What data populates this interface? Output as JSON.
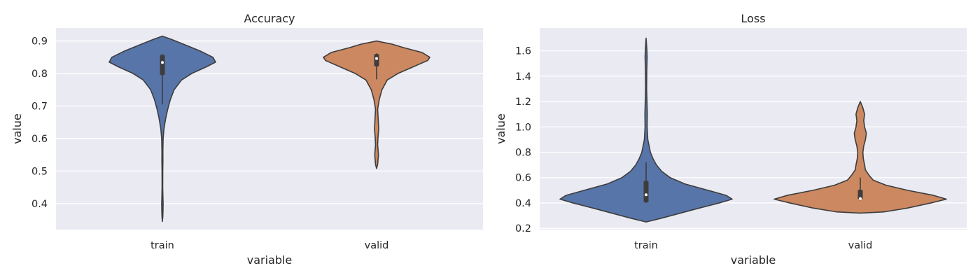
{
  "chart_data": [
    {
      "type": "violin",
      "title": "Accuracy",
      "xlabel": "variable",
      "ylabel": "value",
      "ylim": [
        0.32,
        0.94
      ],
      "yticks": [
        0.4,
        0.5,
        0.6,
        0.7,
        0.8,
        0.9
      ],
      "ytick_labels": [
        "0.4",
        "0.5",
        "0.6",
        "0.7",
        "0.8",
        "0.9"
      ],
      "grid": true,
      "categories": [
        "train",
        "valid"
      ],
      "series": [
        {
          "category": "train",
          "color": "#5875a9",
          "min": 0.345,
          "max": 0.915,
          "q1": 0.795,
          "median": 0.834,
          "q3": 0.857,
          "whisker_low": 0.705,
          "whisker_high": 0.86,
          "density": [
            [
              0.345,
              0
            ],
            [
              0.36,
              0.008
            ],
            [
              0.38,
              0.012
            ],
            [
              0.4,
              0.014
            ],
            [
              0.42,
              0.01
            ],
            [
              0.45,
              0.006
            ],
            [
              0.5,
              0.007
            ],
            [
              0.53,
              0.01
            ],
            [
              0.56,
              0.009
            ],
            [
              0.6,
              0.014
            ],
            [
              0.63,
              0.03
            ],
            [
              0.66,
              0.06
            ],
            [
              0.69,
              0.1
            ],
            [
              0.72,
              0.15
            ],
            [
              0.75,
              0.22
            ],
            [
              0.78,
              0.36
            ],
            [
              0.8,
              0.55
            ],
            [
              0.82,
              0.82
            ],
            [
              0.835,
              1.0
            ],
            [
              0.85,
              0.95
            ],
            [
              0.87,
              0.7
            ],
            [
              0.89,
              0.4
            ],
            [
              0.905,
              0.17
            ],
            [
              0.915,
              0
            ]
          ]
        },
        {
          "category": "valid",
          "color": "#cc8860",
          "min": 0.508,
          "max": 0.9,
          "q1": 0.822,
          "median": 0.846,
          "q3": 0.86,
          "whisker_low": 0.782,
          "whisker_high": 0.862,
          "density": [
            [
              0.508,
              0
            ],
            [
              0.52,
              0.02
            ],
            [
              0.55,
              0.035
            ],
            [
              0.58,
              0.02
            ],
            [
              0.6,
              0.025
            ],
            [
              0.63,
              0.04
            ],
            [
              0.66,
              0.03
            ],
            [
              0.69,
              0.02
            ],
            [
              0.72,
              0.05
            ],
            [
              0.75,
              0.1
            ],
            [
              0.78,
              0.2
            ],
            [
              0.8,
              0.4
            ],
            [
              0.82,
              0.68
            ],
            [
              0.84,
              0.96
            ],
            [
              0.85,
              1.0
            ],
            [
              0.865,
              0.85
            ],
            [
              0.88,
              0.5
            ],
            [
              0.89,
              0.3
            ],
            [
              0.9,
              0
            ]
          ]
        }
      ]
    },
    {
      "type": "violin",
      "title": "Loss",
      "xlabel": "variable",
      "ylabel": "value",
      "ylim": [
        0.19,
        1.78
      ],
      "yticks": [
        0.2,
        0.4,
        0.6,
        0.8,
        1.0,
        1.2,
        1.4,
        1.6
      ],
      "ytick_labels": [
        "0.2",
        "0.4",
        "0.6",
        "0.8",
        "1.0",
        "1.2",
        "1.4",
        "1.6"
      ],
      "grid": true,
      "categories": [
        "train",
        "valid"
      ],
      "series": [
        {
          "category": "train",
          "color": "#5875a9",
          "min": 0.25,
          "max": 1.7,
          "q1": 0.405,
          "median": 0.465,
          "q3": 0.575,
          "whisker_low": 0.4,
          "whisker_high": 0.72,
          "density": [
            [
              0.25,
              0
            ],
            [
              0.28,
              0.18
            ],
            [
              0.32,
              0.4
            ],
            [
              0.36,
              0.62
            ],
            [
              0.4,
              0.85
            ],
            [
              0.43,
              1.0
            ],
            [
              0.46,
              0.93
            ],
            [
              0.5,
              0.72
            ],
            [
              0.55,
              0.45
            ],
            [
              0.6,
              0.28
            ],
            [
              0.65,
              0.18
            ],
            [
              0.7,
              0.12
            ],
            [
              0.75,
              0.08
            ],
            [
              0.8,
              0.05
            ],
            [
              0.9,
              0.02
            ],
            [
              1.0,
              0.012
            ],
            [
              1.1,
              0.014
            ],
            [
              1.2,
              0.01
            ],
            [
              1.3,
              0.006
            ],
            [
              1.45,
              0.008
            ],
            [
              1.55,
              0.012
            ],
            [
              1.62,
              0.008
            ],
            [
              1.7,
              0
            ]
          ]
        },
        {
          "category": "valid",
          "color": "#cc8860",
          "min": 0.32,
          "max": 1.2,
          "q1": 0.43,
          "median": 0.434,
          "q3": 0.505,
          "whisker_low": 0.42,
          "whisker_high": 0.6,
          "density": [
            [
              0.32,
              0
            ],
            [
              0.33,
              0.28
            ],
            [
              0.36,
              0.55
            ],
            [
              0.4,
              0.82
            ],
            [
              0.43,
              1.0
            ],
            [
              0.46,
              0.85
            ],
            [
              0.5,
              0.55
            ],
            [
              0.54,
              0.3
            ],
            [
              0.58,
              0.15
            ],
            [
              0.62,
              0.1
            ],
            [
              0.66,
              0.06
            ],
            [
              0.7,
              0.05
            ],
            [
              0.75,
              0.035
            ],
            [
              0.8,
              0.03
            ],
            [
              0.85,
              0.04
            ],
            [
              0.9,
              0.06
            ],
            [
              0.95,
              0.07
            ],
            [
              1.0,
              0.05
            ],
            [
              1.05,
              0.04
            ],
            [
              1.1,
              0.05
            ],
            [
              1.15,
              0.03
            ],
            [
              1.2,
              0
            ]
          ]
        }
      ]
    }
  ]
}
